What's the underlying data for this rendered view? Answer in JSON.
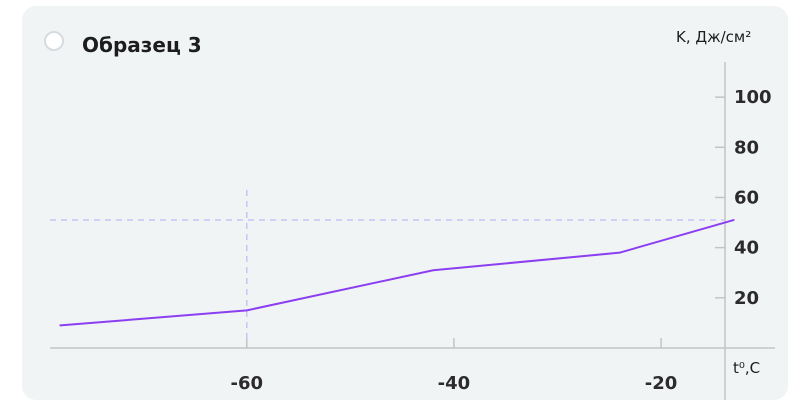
{
  "card": {
    "title": "Образец 3"
  },
  "chart_data": {
    "type": "line",
    "xlabel": "t⁰,C",
    "ylabel": "K, Дж/см²",
    "xlim": [
      -79,
      -9
    ],
    "ylim": [
      0,
      114
    ],
    "x_ticks": [
      -60,
      -40,
      -20
    ],
    "x_tick_labels": [
      "-60",
      "-40",
      "-20"
    ],
    "x_minor_ticks": [
      -60,
      -40,
      -20
    ],
    "y_ticks": [
      20,
      40,
      60,
      80,
      100
    ],
    "y_tick_labels": [
      "20",
      "40",
      "60",
      "80",
      "100"
    ],
    "series": [
      {
        "x": [
          -78,
          -60,
          -42,
          -24,
          -13
        ],
        "y": [
          9,
          15,
          31,
          38,
          51
        ],
        "color": "#8b3ff0"
      }
    ],
    "reference_lines": {
      "x": -60,
      "y": 51,
      "color": "#c9c3f7"
    },
    "axis_color": "#c4c4c4",
    "grid": false
  }
}
